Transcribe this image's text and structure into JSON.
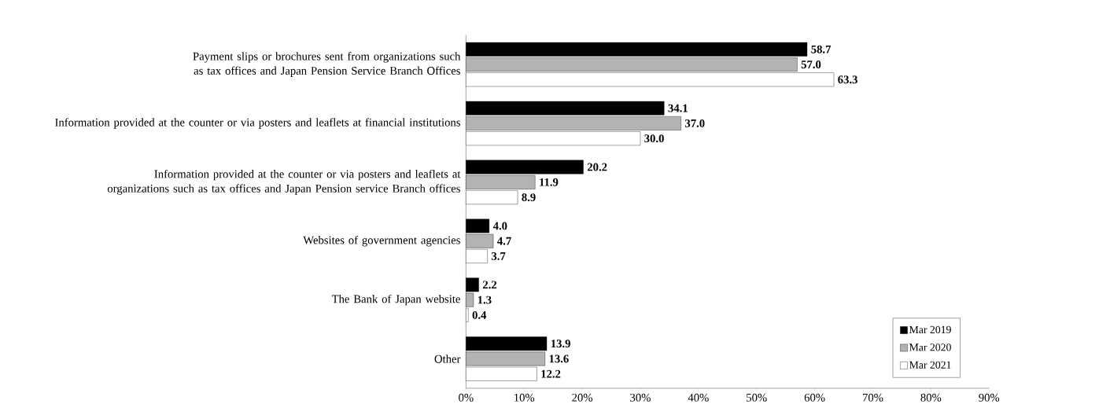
{
  "chart_data": {
    "type": "bar",
    "orientation": "horizontal",
    "categories": [
      "Payment slips or brochures sent from organizations such as tax offices and Japan Pension Service Branch Offices",
      "Information provided at the counter or via posters and leaflets at financial institutions",
      "Information provided at the counter or via posters and leaflets at organizations such as tax offices and Japan Pension service Branch offices",
      "Websites of government agencies",
      "The Bank of Japan website",
      "Other"
    ],
    "series": [
      {
        "name": "Mar 2019",
        "color": "#000000",
        "values": [
          58.7,
          34.1,
          20.2,
          4.0,
          2.2,
          13.9
        ],
        "value_labels": [
          "58.7",
          "34.1",
          "20.2",
          "4.0",
          "2.2",
          "13.9"
        ]
      },
      {
        "name": "Mar 2020",
        "color": "#b3b3b3",
        "values": [
          57.0,
          37.0,
          11.9,
          4.7,
          1.3,
          13.6
        ],
        "value_labels": [
          "57.0",
          "37.0",
          "11.9",
          "4.7",
          "1.3",
          "13.6"
        ]
      },
      {
        "name": "Mar 2021",
        "color": "#ffffff",
        "values": [
          63.3,
          30.0,
          8.9,
          3.7,
          0.4,
          12.2
        ],
        "value_labels": [
          "63.3",
          "30.0",
          "8.9",
          "3.7",
          "0.4",
          "12.2"
        ]
      }
    ],
    "xlim": [
      0,
      90
    ],
    "xticks": [
      {
        "value": 0,
        "label": "0%"
      },
      {
        "value": 10,
        "label": "10%"
      },
      {
        "value": 20,
        "label": "20%"
      },
      {
        "value": 30,
        "label": "30%"
      },
      {
        "value": 40,
        "label": "40%"
      },
      {
        "value": 50,
        "label": "50%"
      },
      {
        "value": 60,
        "label": "60%"
      },
      {
        "value": 70,
        "label": "70%"
      },
      {
        "value": 80,
        "label": "80%"
      },
      {
        "value": 90,
        "label": "90%"
      }
    ],
    "legend": "bottom right",
    "grid": false
  }
}
